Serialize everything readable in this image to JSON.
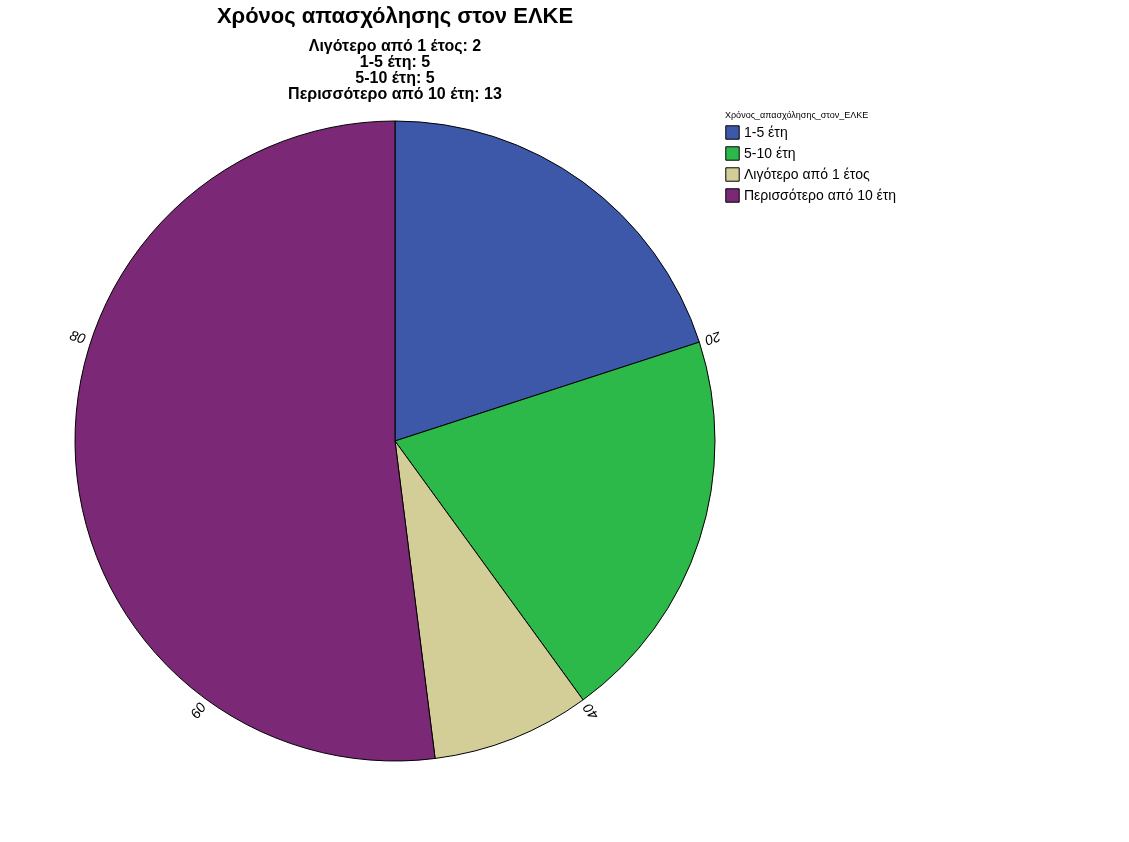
{
  "chart_data": {
    "type": "pie",
    "title": "Χρόνος απασχόλησης στον ΕΛΚΕ",
    "subtitle": "Λιγότερο από 1 έτος: 2\n1-5 έτη: 5\n5-10 έτη: 5\nΠερισσότερο από 10 έτη: 13",
    "legend_title": "Χρόνος_απασχόλησης_στον_ΕΛΚΕ",
    "categories": [
      "1-5 έτη",
      "5-10 έτη",
      "Λιγότερο από 1 έτος",
      "Περισσότερο από 10 έτη"
    ],
    "values": [
      5,
      5,
      2,
      13
    ],
    "colors": [
      "#3d58a8",
      "#2db84a",
      "#d3ce98",
      "#7b2877"
    ],
    "annotations": [
      "20",
      "40",
      "60",
      "80"
    ],
    "legend": "top right"
  }
}
